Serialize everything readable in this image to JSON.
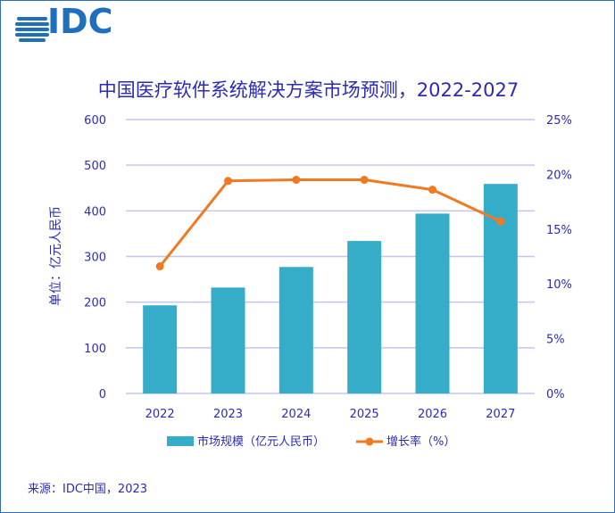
{
  "logo_text": "IDC",
  "source": "来源：IDC中国，2023",
  "colors": {
    "bar": "#36adc8",
    "line": "#f07a22",
    "text": "#2b2bb8",
    "grid": "#c4c4f0",
    "logo": "#1f6fbf"
  },
  "chart_data": {
    "type": "bar+line",
    "title": "中国医疗软件系统解决方案市场预测，2022-2027",
    "ylabel": "单位：亿元人民币",
    "categories": [
      "2022",
      "2023",
      "2024",
      "2025",
      "2026",
      "2027"
    ],
    "ylim": [
      0,
      600
    ],
    "yticks": [
      "0",
      "100",
      "200",
      "300",
      "400",
      "500",
      "600"
    ],
    "y2lim": [
      0,
      25
    ],
    "y2ticks": [
      "0%",
      "5%",
      "10%",
      "15%",
      "20%",
      "25%"
    ],
    "grid": true,
    "legend_position": "bottom",
    "series": [
      {
        "name": "市场规模（亿元人民币）",
        "type": "bar",
        "axis": "left",
        "values": [
          193,
          232,
          277,
          334,
          394,
          459
        ]
      },
      {
        "name": "增长率（%）",
        "type": "line",
        "axis": "right",
        "values": [
          11.6,
          19.4,
          19.5,
          19.5,
          18.6,
          15.7
        ]
      }
    ]
  }
}
